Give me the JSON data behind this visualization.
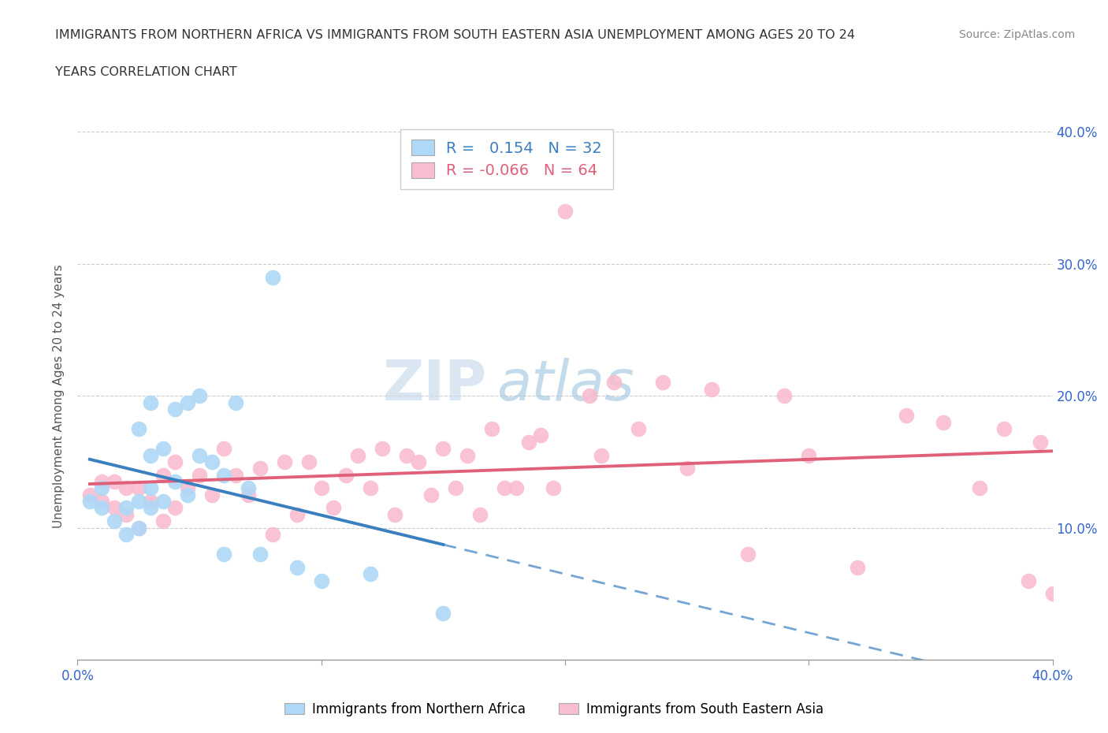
{
  "title_line1": "IMMIGRANTS FROM NORTHERN AFRICA VS IMMIGRANTS FROM SOUTH EASTERN ASIA UNEMPLOYMENT AMONG AGES 20 TO 24",
  "title_line2": "YEARS CORRELATION CHART",
  "source": "Source: ZipAtlas.com",
  "xlabel_blue": "Immigrants from Northern Africa",
  "xlabel_pink": "Immigrants from South Eastern Asia",
  "ylabel": "Unemployment Among Ages 20 to 24 years",
  "xlim": [
    0.0,
    0.4
  ],
  "ylim": [
    0.0,
    0.4
  ],
  "xticks": [
    0.0,
    0.1,
    0.2,
    0.3,
    0.4
  ],
  "yticks": [
    0.0,
    0.1,
    0.2,
    0.3,
    0.4
  ],
  "ytick_labels_right": [
    "",
    "10.0%",
    "20.0%",
    "30.0%",
    "40.0%"
  ],
  "xtick_labels": [
    "0.0%",
    "",
    "",
    "",
    "40.0%"
  ],
  "R_blue": 0.154,
  "N_blue": 32,
  "R_pink": -0.066,
  "N_pink": 64,
  "blue_color": "#ADD8F7",
  "pink_color": "#F9BDD0",
  "blue_line_color": "#3A7FBF",
  "pink_line_color": "#E0607A",
  "watermark_zip": "ZIP",
  "watermark_atlas": "atlas",
  "blue_scatter_x": [
    0.005,
    0.01,
    0.01,
    0.015,
    0.02,
    0.02,
    0.025,
    0.025,
    0.025,
    0.03,
    0.03,
    0.03,
    0.03,
    0.035,
    0.035,
    0.04,
    0.04,
    0.045,
    0.045,
    0.05,
    0.05,
    0.055,
    0.06,
    0.06,
    0.065,
    0.07,
    0.075,
    0.08,
    0.09,
    0.1,
    0.12,
    0.15
  ],
  "blue_scatter_y": [
    0.12,
    0.115,
    0.13,
    0.105,
    0.095,
    0.115,
    0.1,
    0.12,
    0.175,
    0.115,
    0.13,
    0.155,
    0.195,
    0.12,
    0.16,
    0.135,
    0.19,
    0.125,
    0.195,
    0.155,
    0.2,
    0.15,
    0.08,
    0.14,
    0.195,
    0.13,
    0.08,
    0.29,
    0.07,
    0.06,
    0.065,
    0.035
  ],
  "pink_scatter_x": [
    0.005,
    0.01,
    0.01,
    0.015,
    0.015,
    0.02,
    0.02,
    0.025,
    0.025,
    0.03,
    0.035,
    0.035,
    0.04,
    0.04,
    0.045,
    0.05,
    0.055,
    0.06,
    0.065,
    0.07,
    0.075,
    0.08,
    0.085,
    0.09,
    0.095,
    0.1,
    0.105,
    0.11,
    0.115,
    0.12,
    0.125,
    0.13,
    0.135,
    0.14,
    0.145,
    0.15,
    0.155,
    0.16,
    0.165,
    0.17,
    0.175,
    0.18,
    0.185,
    0.19,
    0.195,
    0.2,
    0.21,
    0.215,
    0.22,
    0.23,
    0.24,
    0.25,
    0.26,
    0.275,
    0.29,
    0.3,
    0.32,
    0.34,
    0.355,
    0.37,
    0.38,
    0.39,
    0.395,
    0.4
  ],
  "pink_scatter_y": [
    0.125,
    0.12,
    0.135,
    0.115,
    0.135,
    0.11,
    0.13,
    0.1,
    0.13,
    0.12,
    0.105,
    0.14,
    0.115,
    0.15,
    0.13,
    0.14,
    0.125,
    0.16,
    0.14,
    0.125,
    0.145,
    0.095,
    0.15,
    0.11,
    0.15,
    0.13,
    0.115,
    0.14,
    0.155,
    0.13,
    0.16,
    0.11,
    0.155,
    0.15,
    0.125,
    0.16,
    0.13,
    0.155,
    0.11,
    0.175,
    0.13,
    0.13,
    0.165,
    0.17,
    0.13,
    0.34,
    0.2,
    0.155,
    0.21,
    0.175,
    0.21,
    0.145,
    0.205,
    0.08,
    0.2,
    0.155,
    0.07,
    0.185,
    0.18,
    0.13,
    0.175,
    0.06,
    0.165,
    0.05
  ]
}
